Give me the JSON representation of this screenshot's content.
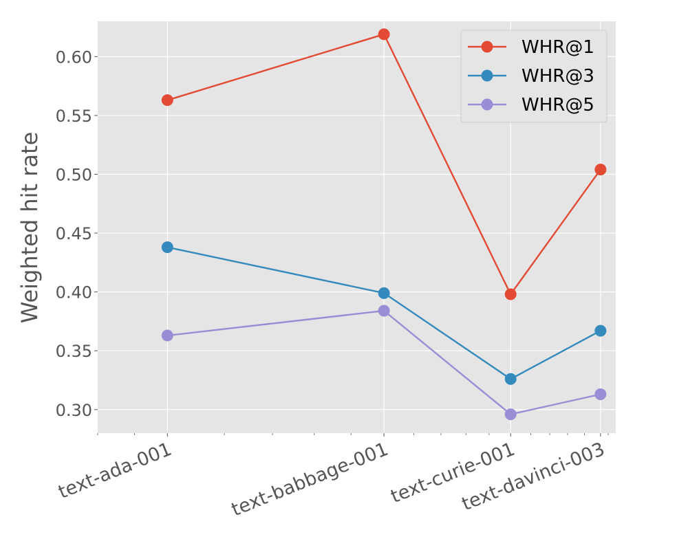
{
  "chart_data": {
    "type": "line",
    "title": "",
    "xlabel": "",
    "ylabel": "Weighted hit rate",
    "categories": [
      "text-ada-001",
      "text-babbage-001",
      "text-curie-001",
      "text-davinci-003"
    ],
    "x_position_scale": "log",
    "ylim": [
      0.28,
      0.63
    ],
    "yticks": [
      0.3,
      0.35,
      0.4,
      0.45,
      0.5,
      0.55,
      0.6
    ],
    "ytick_labels": [
      "0.30",
      "0.35",
      "0.40",
      "0.45",
      "0.50",
      "0.55",
      "0.60"
    ],
    "grid": true,
    "legend_position": "top-right",
    "colors": {
      "background": "#e5e5e5",
      "grid": "#ffffff",
      "text": "#555555"
    },
    "series": [
      {
        "name": "WHR@1",
        "color": "#e24a33",
        "values": [
          0.563,
          0.619,
          0.398,
          0.504
        ]
      },
      {
        "name": "WHR@3",
        "color": "#348abd",
        "values": [
          0.438,
          0.399,
          0.326,
          0.367
        ]
      },
      {
        "name": "WHR@5",
        "color": "#988ed5",
        "values": [
          0.363,
          0.384,
          0.296,
          0.313
        ]
      }
    ]
  }
}
